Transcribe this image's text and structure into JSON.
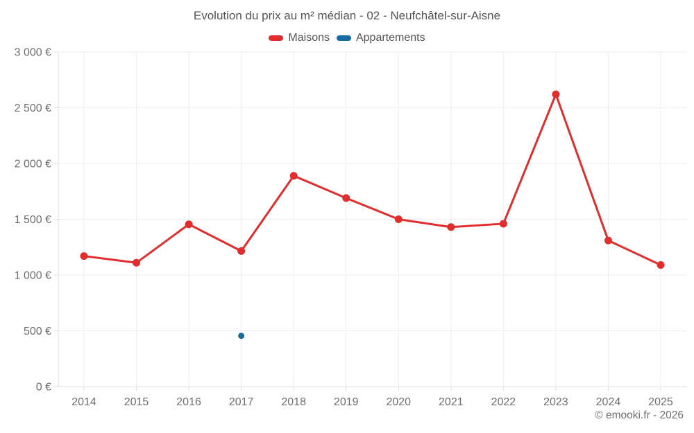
{
  "page": {
    "footer": "© emooki.fr - 2026"
  },
  "chart_data": {
    "type": "line",
    "title": "Evolution du prix au m² médian - 02 - Neufchâtel-sur-Aisne",
    "categories": [
      "2014",
      "2015",
      "2016",
      "2017",
      "2018",
      "2019",
      "2020",
      "2021",
      "2022",
      "2023",
      "2024",
      "2025"
    ],
    "series": [
      {
        "name": "Maisons",
        "color": "#e12d2d",
        "values": [
          1170,
          1110,
          1455,
          1215,
          1890,
          1690,
          1500,
          1430,
          1460,
          2620,
          1310,
          1090
        ]
      },
      {
        "name": "Appartements",
        "color": "#176ba0",
        "values": [
          null,
          null,
          null,
          455,
          null,
          null,
          null,
          null,
          null,
          null,
          null,
          null
        ]
      }
    ],
    "ylim": [
      0,
      3000
    ],
    "ytick_step": 500,
    "ytick_labels": [
      "0 €",
      "500 €",
      "1 000 €",
      "1 500 €",
      "2 000 €",
      "2 500 €",
      "3 000 €"
    ],
    "grid": true,
    "legend_position": "top"
  }
}
